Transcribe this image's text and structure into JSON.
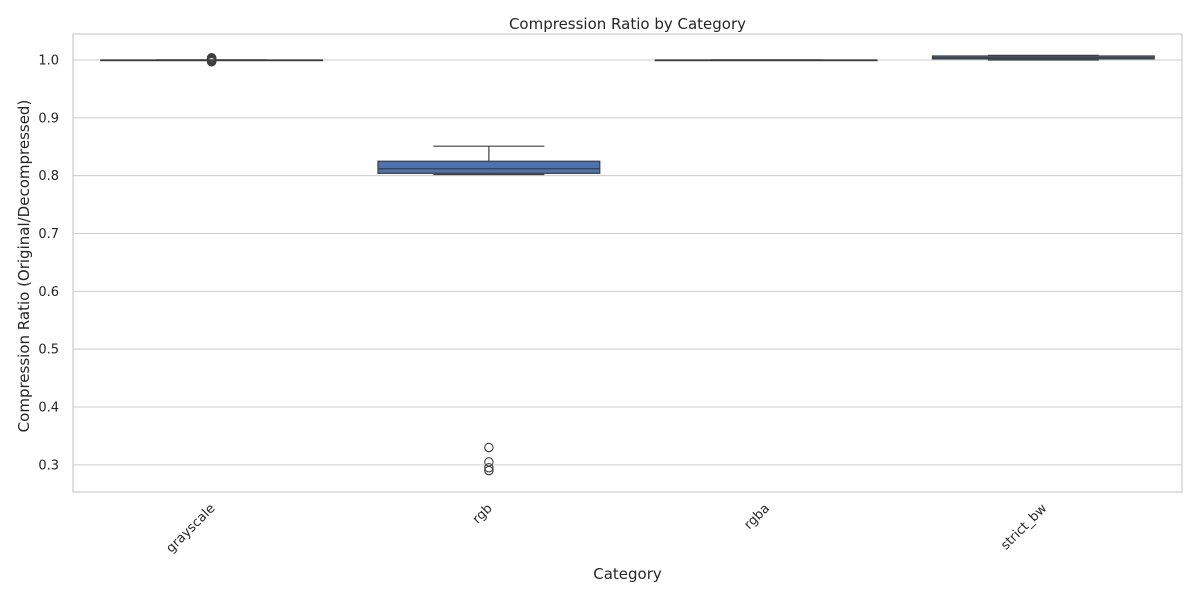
{
  "chart_data": {
    "type": "box",
    "title": "Compression Ratio by Category",
    "xlabel": "Category",
    "ylabel": "Compression Ratio (Original/Decompressed)",
    "categories": [
      "grayscale",
      "rgb",
      "rgba",
      "strict_bw"
    ],
    "ylim": [
      0.253,
      1.045
    ],
    "yticks": [
      0.3,
      0.4,
      0.5,
      0.6,
      0.7,
      0.8,
      0.9,
      1.0
    ],
    "ytick_labels": [
      "0.3",
      "0.4",
      "0.5",
      "0.6",
      "0.7",
      "0.8",
      "0.9",
      "1.0"
    ],
    "grid": true,
    "legend": "none",
    "colors": {
      "box": "#4c72b0",
      "line": "#3f3f3f",
      "grid": "#cccccc",
      "spine": "#cccccc"
    },
    "boxes": [
      {
        "category": "grayscale",
        "whisker_low": 1.0,
        "q1": 1.0,
        "median": 1.0,
        "q3": 1.0,
        "whisker_high": 1.0,
        "outliers": [
          0.997,
          0.998,
          0.999,
          1.0,
          1.001,
          1.002,
          1.003,
          1.004
        ]
      },
      {
        "category": "rgb",
        "whisker_low": 0.802,
        "q1": 0.804,
        "median": 0.812,
        "q3": 0.825,
        "whisker_high": 0.851,
        "outliers": [
          0.33,
          0.305,
          0.295,
          0.29
        ]
      },
      {
        "category": "rgba",
        "whisker_low": 1.0,
        "q1": 1.0,
        "median": 1.0,
        "q3": 1.0,
        "whisker_high": 1.0,
        "outliers": []
      },
      {
        "category": "strict_bw",
        "whisker_low": 1.0,
        "q1": 1.002,
        "median": 1.004,
        "q3": 1.007,
        "whisker_high": 1.008,
        "outliers": []
      }
    ]
  }
}
